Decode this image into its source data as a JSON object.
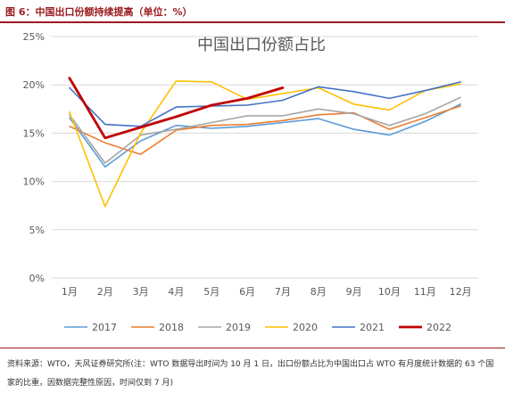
{
  "figure": {
    "caption": "图 6：中国出口份额持续提高（单位：%）",
    "source_note": "资料来源：WTO，天风证券研究所(注：WTO 数据导出时间为 10 月 1 日，出口份额占比为中国出口占 WTO 有月度统计数据的 63 个国家的比重，因数据完整性原因，时间仅到 7 月)"
  },
  "chart_data": {
    "type": "line",
    "title": "中国出口份额占比",
    "categories": [
      "1月",
      "2月",
      "3月",
      "4月",
      "5月",
      "6月",
      "7月",
      "8月",
      "9月",
      "10月",
      "11月",
      "12月"
    ],
    "y_ticks": [
      "0%",
      "5%",
      "10%",
      "15%",
      "20%",
      "25%"
    ],
    "ylim": [
      0,
      25
    ],
    "grid": "horizontal",
    "legend_position": "bottom",
    "series": [
      {
        "name": "2017",
        "color": "#5b9bd5",
        "values": [
          16.6,
          11.5,
          14.2,
          15.8,
          15.5,
          15.7,
          16.1,
          16.5,
          15.4,
          14.8,
          16.2,
          18.0
        ]
      },
      {
        "name": "2018",
        "color": "#ed7d31",
        "values": [
          15.7,
          14.0,
          12.8,
          15.3,
          15.8,
          15.9,
          16.3,
          16.9,
          17.1,
          15.4,
          16.6,
          17.8
        ]
      },
      {
        "name": "2019",
        "color": "#a5a5a5",
        "values": [
          16.9,
          11.9,
          14.8,
          15.4,
          16.1,
          16.8,
          16.8,
          17.5,
          17.0,
          15.8,
          17.0,
          18.7
        ]
      },
      {
        "name": "2020",
        "color": "#ffc000",
        "values": [
          17.2,
          7.4,
          15.0,
          20.4,
          20.3,
          18.5,
          19.1,
          19.7,
          18.0,
          17.4,
          19.4,
          20.1
        ]
      },
      {
        "name": "2021",
        "color": "#4472c4",
        "values": [
          19.7,
          15.9,
          15.7,
          17.7,
          17.8,
          17.9,
          18.4,
          19.8,
          19.3,
          18.6,
          19.4,
          20.3
        ]
      },
      {
        "name": "2022",
        "color": "#c00000",
        "values": [
          20.7,
          14.5,
          15.6,
          16.7,
          17.9,
          18.6,
          19.7,
          null,
          null,
          null,
          null,
          null
        ]
      }
    ]
  }
}
